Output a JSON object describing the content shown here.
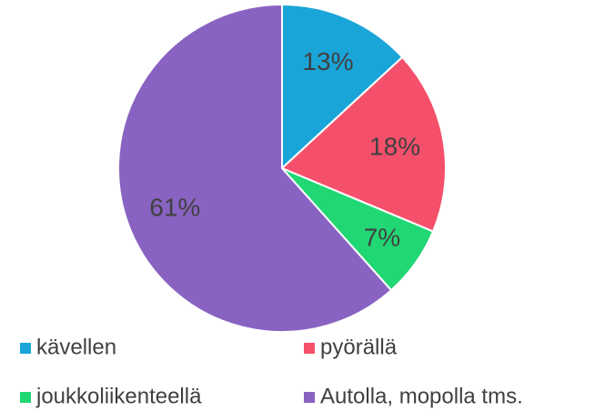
{
  "chart_data": {
    "type": "pie",
    "categories": [
      "kävellen",
      "pyörällä",
      "joukkoliikenteellä",
      "Autolla, mopolla tms."
    ],
    "values": [
      13,
      18,
      7,
      61
    ],
    "value_labels": [
      "13%",
      "18%",
      "7%",
      "61%"
    ],
    "colors": [
      "#1aa5d8",
      "#f5506b",
      "#21d774",
      "#8963c1"
    ]
  }
}
